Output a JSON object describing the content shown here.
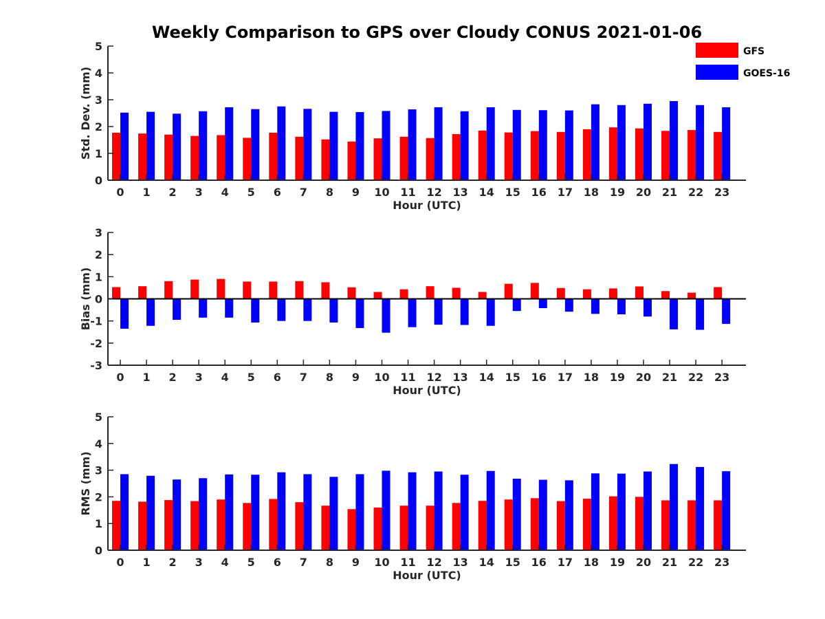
{
  "title": "Weekly Comparison to GPS over Cloudy CONUS 2021-01-06",
  "legend": [
    {
      "name": "GFS",
      "color": "#ff0000"
    },
    {
      "name": "GOES-16",
      "color": "#0000ff"
    }
  ],
  "chart_data": [
    {
      "type": "bar",
      "title": "Weekly Comparison to GPS over Cloudy CONUS 2021-01-06",
      "xlabel": "Hour (UTC)",
      "ylabel": "Std. Dev. (mm)",
      "ylim": [
        0,
        5
      ],
      "yticks": [
        0,
        1,
        2,
        3,
        4,
        5
      ],
      "categories": [
        "0",
        "1",
        "2",
        "3",
        "4",
        "5",
        "6",
        "7",
        "8",
        "9",
        "10",
        "11",
        "12",
        "13",
        "14",
        "15",
        "16",
        "17",
        "18",
        "19",
        "20",
        "21",
        "22",
        "23"
      ],
      "series": [
        {
          "name": "GFS",
          "values": [
            1.77,
            1.74,
            1.7,
            1.65,
            1.68,
            1.58,
            1.77,
            1.62,
            1.52,
            1.44,
            1.56,
            1.62,
            1.57,
            1.72,
            1.85,
            1.78,
            1.83,
            1.8,
            1.9,
            1.97,
            1.93,
            1.84,
            1.87,
            1.8
          ]
        },
        {
          "name": "GOES-16",
          "values": [
            2.52,
            2.55,
            2.48,
            2.57,
            2.72,
            2.65,
            2.75,
            2.66,
            2.55,
            2.54,
            2.58,
            2.64,
            2.72,
            2.57,
            2.72,
            2.62,
            2.61,
            2.6,
            2.83,
            2.8,
            2.85,
            2.95,
            2.8,
            2.72
          ]
        }
      ],
      "grid": false,
      "legend_position": "top-right"
    },
    {
      "type": "bar",
      "xlabel": "Hour (UTC)",
      "ylabel": "Bias (mm)",
      "ylim": [
        -3,
        3
      ],
      "yticks": [
        -3,
        -2,
        -1,
        0,
        1,
        2,
        3
      ],
      "categories": [
        "0",
        "1",
        "2",
        "3",
        "4",
        "5",
        "6",
        "7",
        "8",
        "9",
        "10",
        "11",
        "12",
        "13",
        "14",
        "15",
        "16",
        "17",
        "18",
        "19",
        "20",
        "21",
        "22",
        "23"
      ],
      "series": [
        {
          "name": "GFS",
          "values": [
            0.53,
            0.57,
            0.8,
            0.87,
            0.9,
            0.78,
            0.78,
            0.8,
            0.75,
            0.52,
            0.31,
            0.43,
            0.57,
            0.5,
            0.31,
            0.68,
            0.72,
            0.49,
            0.43,
            0.47,
            0.56,
            0.35,
            0.28,
            0.53
          ]
        },
        {
          "name": "GOES-16",
          "values": [
            -1.35,
            -1.22,
            -0.95,
            -0.85,
            -0.85,
            -1.07,
            -1.0,
            -1.0,
            -1.07,
            -1.32,
            -1.53,
            -1.28,
            -1.17,
            -1.18,
            -1.22,
            -0.55,
            -0.42,
            -0.58,
            -0.68,
            -0.7,
            -0.8,
            -1.38,
            -1.4,
            -1.13
          ]
        }
      ],
      "grid": false
    },
    {
      "type": "bar",
      "xlabel": "Hour (UTC)",
      "ylabel": "RMS (mm)",
      "ylim": [
        0,
        5
      ],
      "yticks": [
        0,
        1,
        2,
        3,
        4,
        5
      ],
      "categories": [
        "0",
        "1",
        "2",
        "3",
        "4",
        "5",
        "6",
        "7",
        "8",
        "9",
        "10",
        "11",
        "12",
        "13",
        "14",
        "15",
        "16",
        "17",
        "18",
        "19",
        "20",
        "21",
        "22",
        "23"
      ],
      "series": [
        {
          "name": "GFS",
          "values": [
            1.85,
            1.82,
            1.88,
            1.84,
            1.9,
            1.77,
            1.92,
            1.8,
            1.67,
            1.54,
            1.6,
            1.67,
            1.67,
            1.77,
            1.85,
            1.9,
            1.95,
            1.84,
            1.93,
            2.02,
            2.0,
            1.87,
            1.87,
            1.87
          ]
        },
        {
          "name": "GOES-16",
          "values": [
            2.85,
            2.79,
            2.65,
            2.7,
            2.84,
            2.83,
            2.92,
            2.85,
            2.75,
            2.85,
            2.98,
            2.92,
            2.95,
            2.83,
            2.97,
            2.68,
            2.64,
            2.62,
            2.88,
            2.87,
            2.95,
            3.23,
            3.12,
            2.96
          ]
        }
      ],
      "grid": false
    }
  ]
}
